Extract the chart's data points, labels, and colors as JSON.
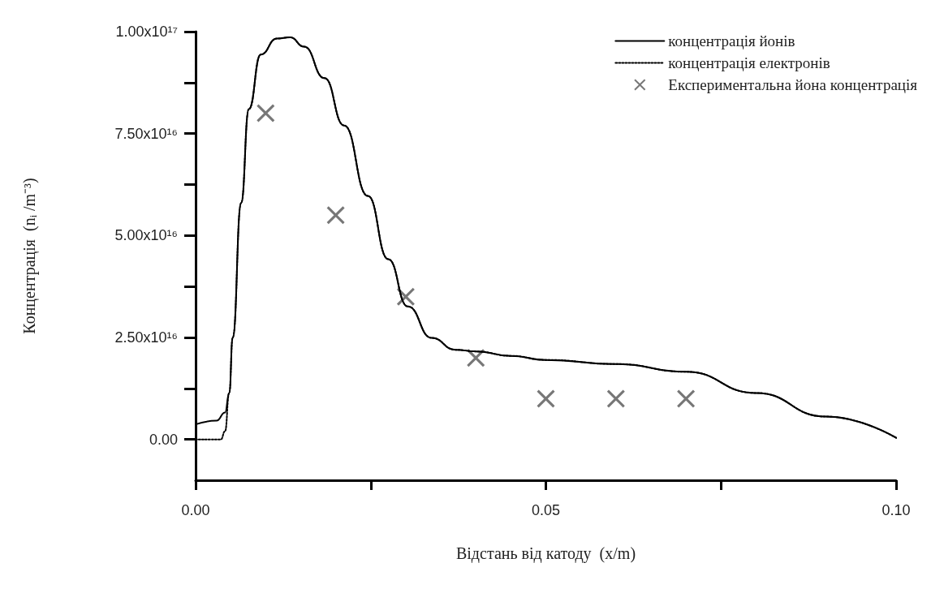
{
  "chart_data": {
    "type": "line",
    "xlabel": "Відстань від катоду  (x/m)",
    "ylabel": "Концентрація  (nᵢ /m⁻³)",
    "xlim": [
      0,
      0.1
    ],
    "xticks": [
      {
        "value": 0,
        "label": "0.00"
      },
      {
        "value": 0.025,
        "label": null
      },
      {
        "value": 0.05,
        "label": "0.05"
      },
      {
        "value": 0.075,
        "label": null
      },
      {
        "value": 0.1,
        "label": "0.10"
      }
    ],
    "ylim": [
      -1e+16,
      1e+17
    ],
    "yticks": [
      {
        "value": 0,
        "label": "0.00"
      },
      {
        "value": 1.25e+16,
        "label": null
      },
      {
        "value": 2.5e+16,
        "label": "2.50x10¹⁶"
      },
      {
        "value": 3.75e+16,
        "label": null
      },
      {
        "value": 5e+16,
        "label": "5.00x10¹⁶"
      },
      {
        "value": 6.25e+16,
        "label": null
      },
      {
        "value": 7.5e+16,
        "label": "7.50x10¹⁶"
      },
      {
        "value": 8.75e+16,
        "label": null
      },
      {
        "value": 1e+17,
        "label": "1.00x10¹⁷"
      }
    ],
    "grid": false,
    "legend": "top right",
    "series": [
      {
        "name": "концентрація йонів",
        "color": "#000000",
        "line_style": "solid",
        "marker": "none",
        "x": [
          0,
          0.003,
          0.0042,
          0.0048,
          0.0053,
          0.0065,
          0.0076,
          0.0093,
          0.0116,
          0.0135,
          0.0155,
          0.0184,
          0.0212,
          0.0246,
          0.0275,
          0.0303,
          0.0337,
          0.0371,
          0.04,
          0.045,
          0.05,
          0.06,
          0.07,
          0.08,
          0.09,
          0.1
        ],
        "values": [
          3700000000000000.0,
          4600000000000000.0,
          6600000000000000.0,
          1.14e+16,
          2.5e+16,
          5.8e+16,
          8.1e+16,
          9.44e+16,
          9.83e+16,
          9.86e+16,
          9.63e+16,
          8.86e+16,
          7.7e+16,
          5.97e+16,
          4.42e+16,
          3.26e+16,
          2.49e+16,
          2.2e+16,
          2.16e+16,
          2.05e+16,
          1.95e+16,
          1.85e+16,
          1.66e+16,
          1.14e+16,
          5600000000000000.0,
          400000000000000.0
        ]
      },
      {
        "name": "концентрація електронів",
        "color": "#000000",
        "line_style": "dotted",
        "marker": "none",
        "x": [
          0,
          0.0036,
          0.0042,
          0.0048,
          0.0053,
          0.0065,
          0.0076,
          0.0093,
          0.0116,
          0.0135,
          0.0155,
          0.0184,
          0.0212,
          0.0246,
          0.0275,
          0.0303,
          0.0337,
          0.0371,
          0.04,
          0.045,
          0.05,
          0.06,
          0.07,
          0.08,
          0.09,
          0.1
        ],
        "values": [
          0,
          0,
          2000000000000000.0,
          1.14e+16,
          2.5e+16,
          5.8e+16,
          8.1e+16,
          9.44e+16,
          9.83e+16,
          9.86e+16,
          9.63e+16,
          8.86e+16,
          7.7e+16,
          5.97e+16,
          4.42e+16,
          3.26e+16,
          2.49e+16,
          2.2e+16,
          2.16e+16,
          2.05e+16,
          1.95e+16,
          1.85e+16,
          1.66e+16,
          1.14e+16,
          5600000000000000.0,
          400000000000000.0
        ]
      },
      {
        "name": "Експериментальна йона концентрація",
        "type": "scatter",
        "color": "#555555",
        "marker": "cross",
        "x": [
          0.01,
          0.02,
          0.03,
          0.04,
          0.05,
          0.06,
          0.07
        ],
        "values": [
          8e+16,
          5.5e+16,
          3.5e+16,
          2e+16,
          1e+16,
          1e+16,
          1e+16
        ]
      }
    ]
  }
}
